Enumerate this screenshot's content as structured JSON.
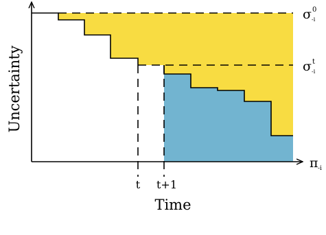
{
  "axes": {
    "ylabel": "Uncertainty",
    "xlabel": "Time"
  },
  "ticks": {
    "t": "t",
    "t_plus_1": "t+1"
  },
  "labels": {
    "sigma_0": {
      "base": "σ",
      "sup": "0",
      "sub": "-i"
    },
    "sigma_t": {
      "base": "σ",
      "sup": "t",
      "sub": "-i"
    },
    "pi": {
      "base": "π",
      "sub": "-i"
    }
  },
  "colors": {
    "yellow_region": "#f8dc42",
    "blue_region": "#72b4d0",
    "lines": "#000000"
  }
}
